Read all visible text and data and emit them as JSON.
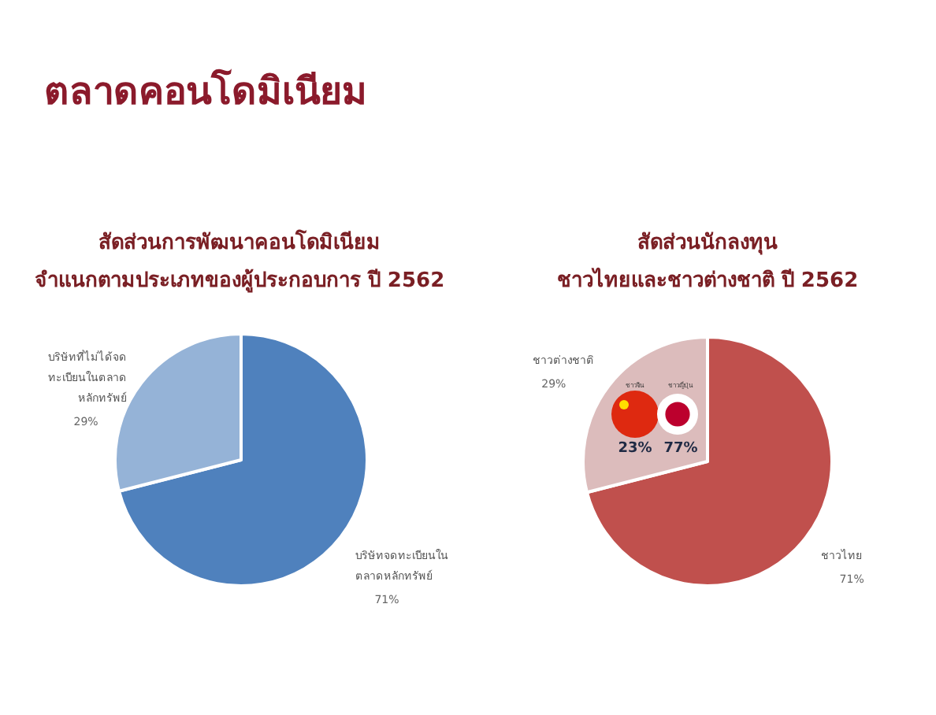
{
  "chart_data": [
    {
      "type": "pie",
      "title": "สัดส่วนการพัฒนาคอนโดมิเนียม",
      "subtitle": "จำแนกตามประเภทของผู้ประกอบการ ปี 2562",
      "annotations": [
        "ตลาดคอนโดมิเนียม"
      ],
      "categories": [
        "บริษัทจดทะเบียนใน\nตลาดหลักทรัพย์",
        "บริษัทที่ไม่ได้จด\nทะเบียนในตลาด\nหลักทรัพย์"
      ],
      "values": [
        71,
        29
      ],
      "value_labels": [
        "71%",
        "29%"
      ],
      "colors": [
        "#4f81bd",
        "#95b3d7"
      ]
    },
    {
      "type": "pie",
      "title": "สัดส่วนนักลงทุน",
      "subtitle": "ชาวไทยและชาวต่างชาติ ปี 2562",
      "categories": [
        "ชาวไทย",
        "ชาวต่างชาติ"
      ],
      "values": [
        71,
        29
      ],
      "value_labels": [
        "71%",
        "29%"
      ],
      "colors": [
        "#c0504d",
        "#dcbcbc"
      ]
    },
    {
      "type": "other",
      "categories": [
        "ชาวจีน",
        "ชาวญี่ปุ่น"
      ],
      "values": [
        23,
        77
      ],
      "value_labels": [
        "23%",
        "77%"
      ]
    }
  ]
}
